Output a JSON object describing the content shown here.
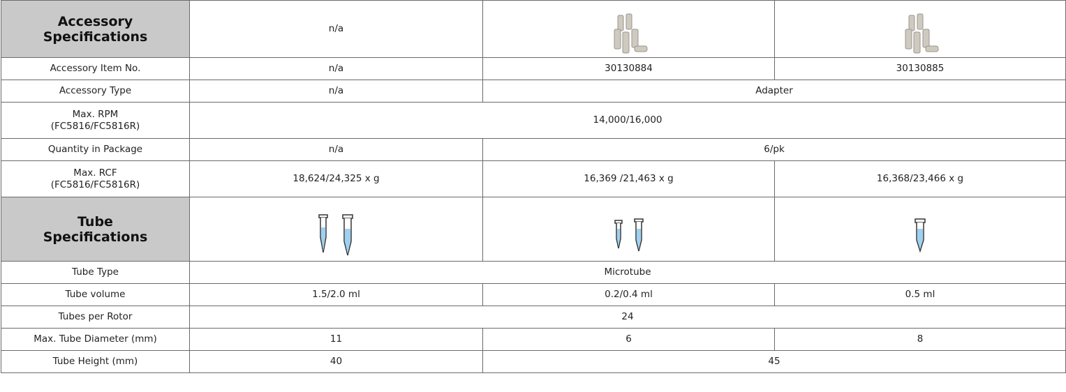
{
  "table": {
    "rows": [
      [
        "Accessory\nSpecifications",
        "n/a"
      ],
      [
        "Accessory Item No.",
        "n/a",
        "30130884",
        "30130885"
      ],
      [
        "Accessory Type",
        "n/a",
        "Adapter"
      ],
      [
        "Max. RPM\n(FC5816/FC5816R)",
        "14,000/16,000"
      ],
      [
        "Quantity in Package",
        "n/a",
        "6/pk"
      ],
      [
        "Max. RCF\n(FC5816/FC5816R)",
        "18,624/24,325 x g",
        "16,369 /21,463 x g",
        "16,368/23,466 x g"
      ],
      [
        "Tube\nSpecifications"
      ],
      [
        "Tube Type",
        "Microtube"
      ],
      [
        "Tube volume",
        "1.5/2.0 ml",
        "0.2/0.4 ml",
        "0.5 ml"
      ],
      [
        "Tubes per Rotor",
        "24"
      ],
      [
        "Max. Tube Diameter (mm)",
        "11",
        "6",
        "8"
      ],
      [
        "Tube Height (mm)",
        "40",
        "45"
      ]
    ]
  }
}
